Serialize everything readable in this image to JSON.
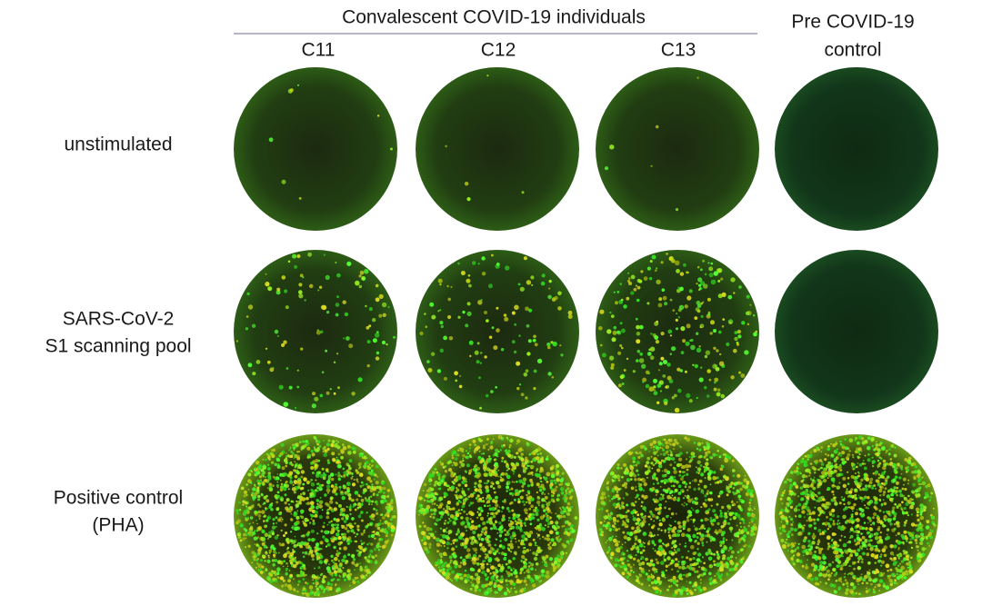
{
  "header": {
    "group_title": "Convalescent COVID-19 individuals",
    "columns": [
      "C11",
      "C12",
      "C13"
    ],
    "control_column": [
      "Pre COVID-19",
      "control"
    ]
  },
  "rows": [
    [
      "unstimulated"
    ],
    [
      "SARS-CoV-2",
      "S1 scanning pool"
    ],
    [
      "Positive control",
      "(PHA)"
    ]
  ]
}
